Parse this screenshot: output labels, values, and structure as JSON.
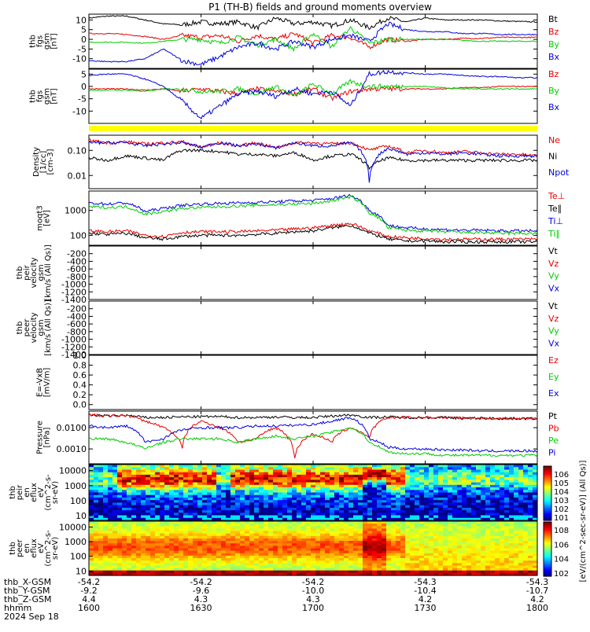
{
  "title": "P1 (TH-B) fields and ground moments overview",
  "colors": {
    "black": "#000000",
    "red": "#e60000",
    "green": "#00cc00",
    "blue": "#0000e0",
    "status_bar": "#ffff00"
  },
  "x_axis": {
    "time_ticks": [
      "1600",
      "1630",
      "1700",
      "1730",
      "1800"
    ],
    "row_labels": [
      "thb_X-GSM",
      "thb_Y-GSM",
      "thb_Z-GSM",
      "hhmm",
      "2024 Sep 18"
    ],
    "rows": [
      [
        "-54.2",
        "-54.2",
        "-54.2",
        "-54.3",
        "-54.3"
      ],
      [
        "-9.2",
        "-9.6",
        "-10.0",
        "-10.4",
        "-10.7"
      ],
      [
        "4.4",
        "4.3",
        "4.3",
        "4.2",
        "4.2"
      ]
    ]
  },
  "colorbar_label": "[eV/(cm^2-sec-sr-eV)] (All Qs)]",
  "chart_data": [
    {
      "type": "line",
      "ylabel": [
        "thb",
        "fgs",
        "gsm",
        "[nT]"
      ],
      "ylim": [
        -15,
        13
      ],
      "ticks": [
        "10",
        "5",
        "0",
        "-5",
        "-10"
      ],
      "tick_values": [
        10,
        5,
        0,
        -5,
        -10
      ],
      "series": [
        {
          "name": "Bt",
          "color": "black",
          "y": [
            11,
            12,
            12,
            10,
            8,
            7.5,
            9,
            8,
            9,
            6,
            11,
            8,
            9,
            7,
            10,
            6,
            11,
            9,
            11,
            10,
            10,
            10,
            9.5,
            9.2,
            9
          ]
        },
        {
          "name": "Bz",
          "color": "red",
          "y": [
            3,
            3,
            2.5,
            1.5,
            0,
            2,
            1,
            2,
            -1,
            2,
            0,
            3,
            -2,
            2,
            1,
            -4,
            0,
            -1,
            0,
            0,
            0.5,
            0.5,
            1,
            1,
            1
          ]
        },
        {
          "name": "By",
          "color": "green",
          "y": [
            -1.5,
            -1.5,
            -1.5,
            -2,
            -1,
            0,
            0,
            -2,
            1,
            -3,
            0,
            -5,
            3,
            -4,
            6,
            -2,
            0,
            0,
            0,
            0,
            -0.5,
            -1,
            -1,
            -1,
            -1
          ]
        },
        {
          "name": "Bx",
          "color": "blue",
          "y": [
            -11,
            -11.5,
            -11.5,
            -10,
            -5,
            -11,
            -13,
            -9,
            -4,
            -2,
            -5,
            -1,
            -4,
            0,
            2,
            -1,
            8,
            5,
            4,
            4,
            3,
            3,
            2.5,
            2.5,
            2.5
          ]
        }
      ]
    },
    {
      "type": "line",
      "ylabel": [
        "thb",
        "fgs",
        "gsm",
        "[nT]"
      ],
      "ylim": [
        -15,
        7
      ],
      "ticks": [
        "5",
        "0",
        "-5",
        "-10"
      ],
      "tick_values": [
        5,
        0,
        -5,
        -10
      ],
      "series": [
        {
          "name": "Bz",
          "color": "red",
          "y": [
            -1,
            -1,
            -1,
            -1.5,
            -1,
            -2,
            -1,
            -2,
            -3,
            -1,
            -2,
            -3,
            -1,
            -5,
            -2,
            -1,
            -1,
            -1,
            -1,
            -1,
            -0.5,
            -0.5,
            0,
            0,
            0
          ]
        },
        {
          "name": "By",
          "color": "green",
          "y": [
            -1.5,
            -1.5,
            -1.5,
            -2,
            -1,
            -1,
            -2,
            -2,
            -1,
            -3,
            0,
            -4,
            1,
            -3,
            2,
            0,
            0,
            0,
            0,
            -0.5,
            -1,
            -1,
            -1,
            -1,
            -1
          ]
        },
        {
          "name": "Bx",
          "color": "blue",
          "y": [
            4.5,
            5,
            5,
            3,
            0,
            -6,
            -13,
            -8,
            -3,
            -2,
            -4,
            -1,
            -3,
            -2,
            -8,
            5,
            6,
            5.5,
            5,
            5,
            4.5,
            4,
            4,
            3.5,
            3.5
          ]
        }
      ]
    },
    {
      "type": "line",
      "ylabel": [
        "Density",
        "[1/cc]",
        "[cm-3]"
      ],
      "ylim": [
        0.003,
        0.4
      ],
      "log": true,
      "ticks": [
        "0.10",
        "0.01"
      ],
      "tick_values": [
        0.1,
        0.01
      ],
      "series": [
        {
          "name": "Ne",
          "color": "red",
          "y": [
            0.25,
            0.2,
            0.22,
            0.18,
            0.2,
            0.22,
            0.13,
            0.2,
            0.15,
            0.2,
            0.12,
            0.2,
            0.2,
            0.18,
            0.2,
            0.1,
            0.15,
            0.08,
            0.1,
            0.08,
            0.09,
            0.08,
            0.07,
            0.07,
            0.06
          ]
        },
        {
          "name": "Ni",
          "color": "black",
          "y": [
            0.05,
            0.04,
            0.06,
            0.05,
            0.04,
            0.1,
            0.1,
            0.09,
            0.07,
            0.07,
            0.06,
            0.08,
            0.04,
            0.06,
            0.07,
            0.02,
            0.05,
            0.04,
            0.04,
            0.04,
            0.04,
            0.04,
            0.04,
            0.04,
            0.04
          ]
        },
        {
          "name": "Npot",
          "color": "blue",
          "y": [
            0.2,
            0.2,
            0.2,
            0.15,
            0.18,
            0.2,
            0.13,
            0.2,
            0.15,
            0.18,
            0.12,
            0.2,
            0.15,
            0.15,
            0.2,
            0.005,
            0.12,
            0.07,
            0.08,
            0.07,
            0.08,
            0.07,
            0.06,
            0.06,
            0.06
          ]
        }
      ]
    },
    {
      "type": "line",
      "ylabel": [
        "moqt3",
        "[eV]"
      ],
      "ylim": [
        40,
        6000
      ],
      "log": true,
      "ticks": [
        "1000",
        "100"
      ],
      "tick_values": [
        1000,
        100
      ],
      "series": [
        {
          "name": "Te⊥",
          "color": "red",
          "y": [
            150,
            140,
            150,
            100,
            90,
            130,
            140,
            140,
            140,
            150,
            160,
            180,
            200,
            250,
            300,
            150,
            90,
            80,
            75,
            70,
            70,
            70,
            70,
            70,
            70
          ]
        },
        {
          "name": "Te∥",
          "color": "black",
          "y": [
            120,
            110,
            120,
            80,
            70,
            90,
            100,
            100,
            100,
            110,
            120,
            140,
            150,
            200,
            250,
            120,
            70,
            60,
            60,
            55,
            55,
            55,
            55,
            55,
            55
          ]
        },
        {
          "name": "Ti⊥",
          "color": "blue",
          "y": [
            2000,
            1800,
            2000,
            900,
            1200,
            1600,
            1800,
            1900,
            2000,
            2100,
            2200,
            2400,
            2500,
            3000,
            4000,
            1000,
            250,
            200,
            180,
            170,
            160,
            160,
            150,
            150,
            150
          ]
        },
        {
          "name": "Ti∥",
          "color": "green",
          "y": [
            1400,
            1300,
            1400,
            700,
            900,
            1200,
            1300,
            1400,
            1500,
            1600,
            1700,
            1800,
            1900,
            2400,
            3500,
            800,
            200,
            160,
            150,
            140,
            130,
            130,
            120,
            120,
            120
          ]
        }
      ]
    },
    {
      "type": "line",
      "ylabel": [
        "thb",
        "peir",
        "velocity",
        "gsm",
        "[km/s (All Qs)]"
      ],
      "ylim": [
        -1400,
        0
      ],
      "ticks": [
        "-200",
        "-400",
        "-600",
        "-800",
        "-1000",
        "-1200",
        "-1400"
      ],
      "tick_values": [
        -200,
        -400,
        -600,
        -800,
        -1000,
        -1200,
        -1400
      ],
      "series": [
        {
          "name": "Vt",
          "color": "black",
          "y": []
        },
        {
          "name": "Vz",
          "color": "red",
          "y": []
        },
        {
          "name": "Vy",
          "color": "green",
          "y": []
        },
        {
          "name": "Vx",
          "color": "blue",
          "y": []
        }
      ]
    },
    {
      "type": "line",
      "ylabel": [
        "thb",
        "peer",
        "velocity",
        "gsm",
        "[km/s (All Qs)]"
      ],
      "ylim": [
        -1400,
        0
      ],
      "ticks": [
        "-200",
        "-400",
        "-600",
        "-800",
        "-1000",
        "-1200",
        "-1400"
      ],
      "tick_values": [
        -200,
        -400,
        -600,
        -800,
        -1000,
        -1200,
        -1400
      ],
      "series": [
        {
          "name": "Vt",
          "color": "black",
          "y": []
        },
        {
          "name": "Vz",
          "color": "red",
          "y": []
        },
        {
          "name": "Vy",
          "color": "green",
          "y": []
        },
        {
          "name": "Vx",
          "color": "blue",
          "y": []
        }
      ]
    },
    {
      "type": "line",
      "ylabel": [
        "E=-VxB",
        "[mV/m]"
      ],
      "ylim": [
        -0.1,
        1.0
      ],
      "ticks": [
        "1.0",
        "0.8",
        "0.6",
        "0.4",
        "0.2",
        "0.0"
      ],
      "tick_values": [
        1.0,
        0.8,
        0.6,
        0.4,
        0.2,
        0.0
      ],
      "series": [
        {
          "name": "Ez",
          "color": "red",
          "y": []
        },
        {
          "name": "Ey",
          "color": "green",
          "y": []
        },
        {
          "name": "Ex",
          "color": "blue",
          "y": []
        }
      ]
    },
    {
      "type": "line",
      "ylabel": [
        "Pressure",
        "[nPa]"
      ],
      "ylim": [
        0.0002,
        0.06
      ],
      "log": true,
      "ticks": [
        "0.0100",
        "0.0010"
      ],
      "tick_values": [
        0.01,
        0.001
      ],
      "series": [
        {
          "name": "Pt",
          "color": "black",
          "y": [
            0.04,
            0.035,
            0.038,
            0.03,
            0.03,
            0.032,
            0.033,
            0.033,
            0.03,
            0.03,
            0.032,
            0.03,
            0.03,
            0.035,
            0.04,
            0.03,
            0.032,
            0.03,
            0.03,
            0.03,
            0.028,
            0.028,
            0.027,
            0.027,
            0.027
          ]
        },
        {
          "name": "Pb",
          "color": "red",
          "y": [
            0.04,
            0.035,
            0.038,
            0.02,
            0.01,
            0.001,
            0.02,
            0.01,
            0.002,
            0.003,
            0.01,
            0.0003,
            0.005,
            0.002,
            0.01,
            0.003,
            0.03,
            0.03,
            0.03,
            0.03,
            0.028,
            0.028,
            0.027,
            0.027,
            0.027
          ]
        },
        {
          "name": "Pe",
          "color": "green",
          "y": [
            0.003,
            0.003,
            0.002,
            0.001,
            0.002,
            0.003,
            0.003,
            0.003,
            0.002,
            0.003,
            0.004,
            0.003,
            0.004,
            0.006,
            0.01,
            0.002,
            0.0007,
            0.0006,
            0.0006,
            0.0005,
            0.0005,
            0.0005,
            0.0005,
            0.0005,
            0.0005
          ]
        },
        {
          "name": "Pi",
          "color": "blue",
          "y": [
            0.012,
            0.01,
            0.012,
            0.002,
            0.003,
            0.008,
            0.01,
            0.01,
            0.01,
            0.012,
            0.012,
            0.013,
            0.014,
            0.02,
            0.03,
            0.003,
            0.0012,
            0.001,
            0.001,
            0.0009,
            0.0009,
            0.0008,
            0.0008,
            0.0008,
            0.0008
          ]
        }
      ]
    },
    {
      "type": "heatmap",
      "ylabel": [
        "thb",
        "peir",
        "en",
        "eflux",
        "eV",
        "(cm^2-s-",
        "sr-eV)"
      ],
      "ylim": [
        5,
        25000
      ],
      "log": true,
      "ticks": [
        "10000",
        "1000",
        "100",
        "10"
      ],
      "tick_values": [
        10000,
        1000,
        100,
        10
      ],
      "colorbar_ticks": [
        "10^6",
        "10^5",
        "10^4",
        "10^3",
        "10^2",
        "10^1"
      ]
    },
    {
      "type": "heatmap",
      "ylabel": [
        "thb",
        "peer",
        "en",
        "eflux",
        "eV",
        "(cm^2-s-",
        "sr-eV)"
      ],
      "ylim": [
        5,
        25000
      ],
      "log": true,
      "ticks": [
        "10000",
        "1000",
        "100",
        "10"
      ],
      "tick_values": [
        10000,
        1000,
        100,
        10
      ],
      "colorbar_ticks": [
        "10^8",
        "10^6",
        "10^4",
        "10^2"
      ]
    }
  ]
}
